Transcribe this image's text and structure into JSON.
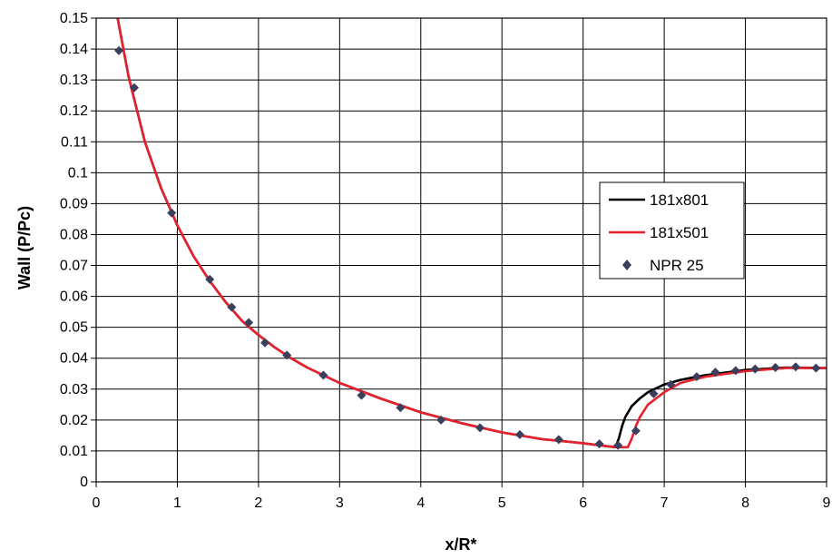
{
  "chart_data": {
    "type": "line",
    "title": "",
    "xlabel": "x/R*",
    "ylabel": "Wall  (P/Pc)",
    "xlim": [
      0,
      9
    ],
    "ylim": [
      0,
      0.15
    ],
    "grid": true,
    "legend_position": "right",
    "x_ticks": [
      "0",
      "1",
      "2",
      "3",
      "4",
      "5",
      "6",
      "7",
      "8",
      "9"
    ],
    "y_ticks": [
      "0",
      "0.01",
      "0.02",
      "0.03",
      "0.04",
      "0.05",
      "0.06",
      "0.07",
      "0.08",
      "0.09",
      "0.1",
      "0.11",
      "0.12",
      "0.13",
      "0.14",
      "0.15"
    ],
    "series": [
      {
        "name": "181x801",
        "style": "line",
        "color": "#000000",
        "x": [
          0.25,
          0.4,
          0.6,
          0.8,
          1.0,
          1.2,
          1.4,
          1.6,
          1.8,
          2.0,
          2.2,
          2.4,
          2.6,
          2.8,
          3.0,
          3.5,
          4.0,
          4.5,
          5.0,
          5.5,
          6.0,
          6.3,
          6.4,
          6.44,
          6.48,
          6.52,
          6.6,
          6.7,
          6.8,
          7.0,
          7.2,
          7.5,
          8.0,
          8.5,
          9.0
        ],
        "y": [
          0.152,
          0.131,
          0.11,
          0.095,
          0.083,
          0.073,
          0.065,
          0.058,
          0.052,
          0.0475,
          0.0435,
          0.04,
          0.037,
          0.0345,
          0.032,
          0.027,
          0.0225,
          0.019,
          0.016,
          0.0138,
          0.0125,
          0.0115,
          0.0112,
          0.014,
          0.018,
          0.021,
          0.0245,
          0.027,
          0.029,
          0.0315,
          0.033,
          0.0345,
          0.0362,
          0.037,
          0.0368
        ]
      },
      {
        "name": "181x501",
        "style": "line",
        "color": "#e8212e",
        "x": [
          0.25,
          0.4,
          0.6,
          0.8,
          1.0,
          1.2,
          1.4,
          1.6,
          1.8,
          2.0,
          2.2,
          2.4,
          2.6,
          2.8,
          3.0,
          3.5,
          4.0,
          4.5,
          5.0,
          5.5,
          6.0,
          6.3,
          6.45,
          6.55,
          6.6,
          6.65,
          6.7,
          6.8,
          7.0,
          7.2,
          7.5,
          8.0,
          8.5,
          9.0
        ],
        "y": [
          0.152,
          0.131,
          0.11,
          0.095,
          0.083,
          0.073,
          0.065,
          0.058,
          0.052,
          0.0475,
          0.0435,
          0.04,
          0.037,
          0.0345,
          0.032,
          0.027,
          0.0225,
          0.019,
          0.016,
          0.0138,
          0.0125,
          0.0115,
          0.0112,
          0.0112,
          0.014,
          0.018,
          0.021,
          0.025,
          0.029,
          0.032,
          0.034,
          0.0358,
          0.0368,
          0.0368
        ]
      },
      {
        "name": "NPR 25",
        "style": "markers",
        "marker": "diamond",
        "color": "#3a3f5c",
        "x": [
          0.28,
          0.47,
          0.93,
          1.4,
          1.67,
          1.88,
          2.08,
          2.35,
          2.8,
          3.27,
          3.75,
          4.25,
          4.73,
          5.22,
          5.7,
          6.2,
          6.43,
          6.65,
          6.87,
          7.08,
          7.4,
          7.63,
          7.88,
          8.12,
          8.37,
          8.62,
          8.87
        ],
        "y": [
          0.1395,
          0.1275,
          0.087,
          0.0655,
          0.0565,
          0.0515,
          0.045,
          0.041,
          0.0345,
          0.028,
          0.024,
          0.02,
          0.0175,
          0.0153,
          0.0137,
          0.0123,
          0.0118,
          0.0165,
          0.0285,
          0.0315,
          0.034,
          0.0355,
          0.036,
          0.0365,
          0.037,
          0.0372,
          0.0368
        ]
      }
    ]
  }
}
